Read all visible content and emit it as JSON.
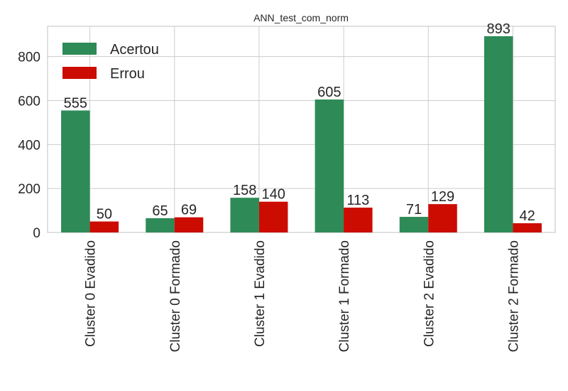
{
  "chart_data": {
    "type": "bar",
    "title": "ANN_test_com_norm",
    "xlabel": "",
    "ylabel": "",
    "categories": [
      "Cluster 0 Evadido",
      "Cluster 0 Formado",
      "Cluster 1 Evadido",
      "Cluster 1 Formado",
      "Cluster 2 Evadido",
      "Cluster 2 Formado"
    ],
    "series": [
      {
        "name": "Acertou",
        "color": "#2e8b57",
        "values": [
          555,
          65,
          158,
          605,
          71,
          893
        ]
      },
      {
        "name": "Errou",
        "color": "#cc0c00",
        "values": [
          50,
          69,
          140,
          113,
          129,
          42
        ]
      }
    ],
    "ylim": [
      0,
      938
    ],
    "yticks": [
      0,
      200,
      400,
      600,
      800
    ],
    "grid": true,
    "legend_position": "top-left"
  }
}
